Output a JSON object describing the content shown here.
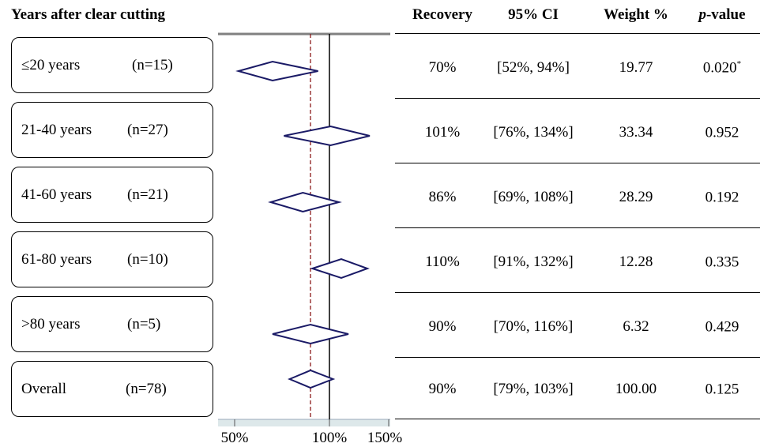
{
  "headers": {
    "group": "Years after clear cutting",
    "recovery": "Recovery",
    "ci": "95% CI",
    "weight": "Weight %",
    "p_italic": "p",
    "p_rest": "-value"
  },
  "rows": [
    {
      "label": "≤20 years",
      "n": "(n=15)",
      "recovery": "70%",
      "ci": "[52%, 94%]",
      "weight": "19.77",
      "p": "0.020",
      "p_star": "*"
    },
    {
      "label": "21-40 years",
      "n": "(n=27)",
      "recovery": "101%",
      "ci": "[76%, 134%]",
      "weight": "33.34",
      "p": "0.952",
      "p_star": ""
    },
    {
      "label": "41-60 years",
      "n": "(n=21)",
      "recovery": "86%",
      "ci": "[69%, 108%]",
      "weight": "28.29",
      "p": "0.192",
      "p_star": ""
    },
    {
      "label": "61-80 years",
      "n": "(n=10)",
      "recovery": "110%",
      "ci": "[91%, 132%]",
      "weight": "12.28",
      "p": "0.335",
      "p_star": ""
    },
    {
      "label": ">80 years",
      "n": "(n=5)",
      "recovery": "90%",
      "ci": "[70%, 116%]",
      "weight": "6.32",
      "p": "0.429",
      "p_star": ""
    },
    {
      "label": "Overall",
      "n": "(n=78)",
      "recovery": "90%",
      "ci": "[79%, 103%]",
      "weight": "100.00",
      "p": "0.125",
      "p_star": ""
    }
  ],
  "chart_data": {
    "type": "forest",
    "x_ticks": [
      "50%",
      "100%",
      "150%"
    ],
    "xlim": [
      50,
      150
    ],
    "reference_line": 100,
    "overall_line": 90,
    "estimates": [
      70,
      101,
      86,
      110,
      90,
      90
    ],
    "ci_low": [
      52,
      76,
      69,
      91,
      70,
      79
    ],
    "ci_high": [
      94,
      134,
      108,
      132,
      116,
      103
    ],
    "colors": {
      "diamond": "#1a1a66",
      "overall_line": "#8b1a1a",
      "reference_line": "#000000",
      "top_rule": "#808080",
      "axis_band": "#dde8ea"
    }
  }
}
